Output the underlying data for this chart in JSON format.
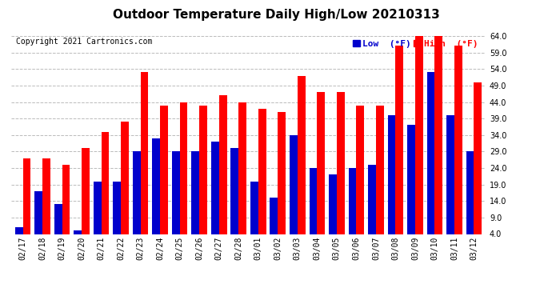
{
  "title": "Outdoor Temperature Daily High/Low 20210313",
  "copyright": "Copyright 2021 Cartronics.com",
  "legend_low": "Low  (°F)",
  "legend_high": "High  (°F)",
  "dates": [
    "02/17",
    "02/18",
    "02/19",
    "02/20",
    "02/21",
    "02/22",
    "02/23",
    "02/24",
    "02/25",
    "02/26",
    "02/27",
    "02/28",
    "03/01",
    "03/02",
    "03/03",
    "03/04",
    "03/05",
    "03/06",
    "03/07",
    "03/08",
    "03/09",
    "03/10",
    "03/11",
    "03/12"
  ],
  "high": [
    27,
    27,
    25,
    30,
    35,
    38,
    53,
    43,
    44,
    43,
    46,
    44,
    42,
    41,
    52,
    47,
    47,
    43,
    43,
    61,
    64,
    64,
    61,
    50
  ],
  "low": [
    6,
    17,
    13,
    5,
    20,
    20,
    29,
    33,
    29,
    29,
    32,
    30,
    20,
    15,
    34,
    24,
    22,
    24,
    25,
    40,
    37,
    53,
    40,
    29
  ],
  "bar_color_high": "#ff0000",
  "bar_color_low": "#0000cc",
  "bg_color": "#ffffff",
  "grid_color": "#bbbbbb",
  "ylim_min": 4.0,
  "ylim_max": 64.0,
  "yticks": [
    4.0,
    9.0,
    14.0,
    19.0,
    24.0,
    29.0,
    34.0,
    39.0,
    44.0,
    49.0,
    54.0,
    59.0,
    64.0
  ],
  "title_fontsize": 11,
  "tick_fontsize": 7,
  "legend_fontsize": 8,
  "copyright_fontsize": 7,
  "bar_bottom": 4.0
}
